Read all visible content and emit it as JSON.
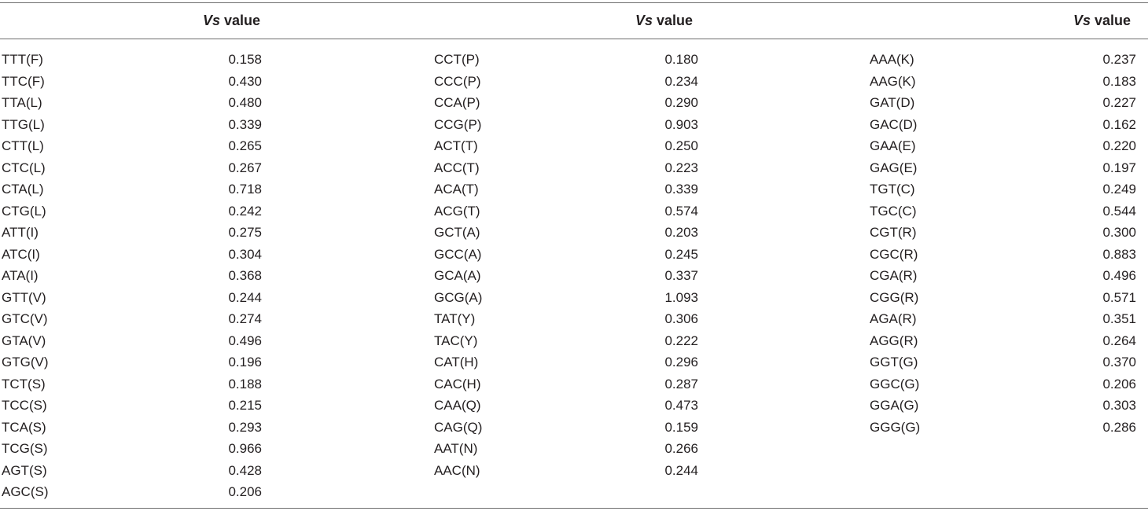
{
  "header": {
    "col1": {
      "symbol": "Vs",
      "word": " value"
    },
    "col2": {
      "symbol": "Vs",
      "word": " value"
    },
    "col3": {
      "symbol": "Vs",
      "word": " value"
    }
  },
  "columns": [
    [
      {
        "codon": "TTT(F)",
        "value": "0.158"
      },
      {
        "codon": "TTC(F)",
        "value": "0.430"
      },
      {
        "codon": "TTA(L)",
        "value": "0.480"
      },
      {
        "codon": "TTG(L)",
        "value": "0.339"
      },
      {
        "codon": "CTT(L)",
        "value": "0.265"
      },
      {
        "codon": "CTC(L)",
        "value": "0.267"
      },
      {
        "codon": "CTA(L)",
        "value": "0.718"
      },
      {
        "codon": "CTG(L)",
        "value": "0.242"
      },
      {
        "codon": "ATT(I)",
        "value": "0.275"
      },
      {
        "codon": "ATC(I)",
        "value": "0.304"
      },
      {
        "codon": "ATA(I)",
        "value": "0.368"
      },
      {
        "codon": "GTT(V)",
        "value": "0.244"
      },
      {
        "codon": "GTC(V)",
        "value": "0.274"
      },
      {
        "codon": "GTA(V)",
        "value": "0.496"
      },
      {
        "codon": "GTG(V)",
        "value": "0.196"
      },
      {
        "codon": "TCT(S)",
        "value": "0.188"
      },
      {
        "codon": "TCC(S)",
        "value": "0.215"
      },
      {
        "codon": "TCA(S)",
        "value": "0.293"
      },
      {
        "codon": "TCG(S)",
        "value": "0.966"
      },
      {
        "codon": "AGT(S)",
        "value": "0.428"
      },
      {
        "codon": "AGC(S)",
        "value": "0.206"
      }
    ],
    [
      {
        "codon": "CCT(P)",
        "value": "0.180"
      },
      {
        "codon": "CCC(P)",
        "value": "0.234"
      },
      {
        "codon": "CCA(P)",
        "value": "0.290"
      },
      {
        "codon": "CCG(P)",
        "value": "0.903"
      },
      {
        "codon": "ACT(T)",
        "value": "0.250"
      },
      {
        "codon": "ACC(T)",
        "value": "0.223"
      },
      {
        "codon": "ACA(T)",
        "value": "0.339"
      },
      {
        "codon": "ACG(T)",
        "value": "0.574"
      },
      {
        "codon": "GCT(A)",
        "value": "0.203"
      },
      {
        "codon": "GCC(A)",
        "value": "0.245"
      },
      {
        "codon": "GCA(A)",
        "value": "0.337"
      },
      {
        "codon": "GCG(A)",
        "value": "1.093"
      },
      {
        "codon": "TAT(Y)",
        "value": "0.306"
      },
      {
        "codon": "TAC(Y)",
        "value": "0.222"
      },
      {
        "codon": "CAT(H)",
        "value": "0.296"
      },
      {
        "codon": "CAC(H)",
        "value": "0.287"
      },
      {
        "codon": "CAA(Q)",
        "value": "0.473"
      },
      {
        "codon": "CAG(Q)",
        "value": "0.159"
      },
      {
        "codon": "AAT(N)",
        "value": "0.266"
      },
      {
        "codon": "AAC(N)",
        "value": "0.244"
      }
    ],
    [
      {
        "codon": "AAA(K)",
        "value": "0.237"
      },
      {
        "codon": "AAG(K)",
        "value": "0.183"
      },
      {
        "codon": "GAT(D)",
        "value": "0.227"
      },
      {
        "codon": "GAC(D)",
        "value": "0.162"
      },
      {
        "codon": "GAA(E)",
        "value": "0.220"
      },
      {
        "codon": "GAG(E)",
        "value": "0.197"
      },
      {
        "codon": "TGT(C)",
        "value": "0.249"
      },
      {
        "codon": "TGC(C)",
        "value": "0.544"
      },
      {
        "codon": "CGT(R)",
        "value": "0.300"
      },
      {
        "codon": "CGC(R)",
        "value": "0.883"
      },
      {
        "codon": "CGA(R)",
        "value": "0.496"
      },
      {
        "codon": "CGG(R)",
        "value": "0.571"
      },
      {
        "codon": "AGA(R)",
        "value": "0.351"
      },
      {
        "codon": "AGG(R)",
        "value": "0.264"
      },
      {
        "codon": "GGT(G)",
        "value": "0.370"
      },
      {
        "codon": "GGC(G)",
        "value": "0.206"
      },
      {
        "codon": "GGA(G)",
        "value": "0.303"
      },
      {
        "codon": "GGG(G)",
        "value": "0.286"
      }
    ]
  ]
}
